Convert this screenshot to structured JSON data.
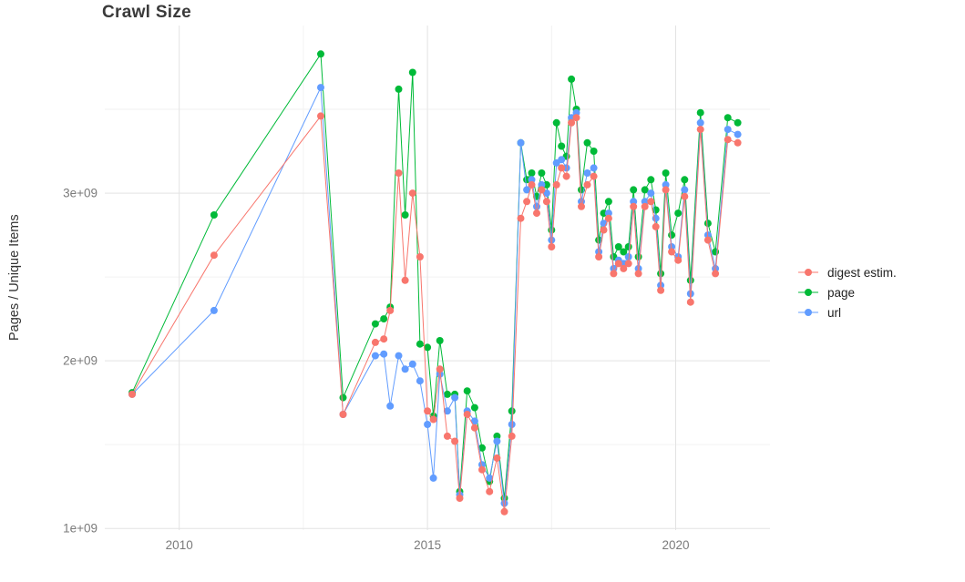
{
  "chart_data": {
    "type": "line",
    "markers": true,
    "title": "Crawl Size",
    "xlabel": "",
    "ylabel": "Pages / Unique Items",
    "y_value_unit": "1e9 (billions)",
    "background": "#ffffff",
    "grid": true,
    "legend_position": "right-center",
    "x_domain": [
      2008.5,
      2021.9
    ],
    "y_domain": [
      0.99,
      4.0
    ],
    "x_ticks": [
      {
        "value": 2010,
        "label": "2010"
      },
      {
        "value": 2015,
        "label": "2015"
      },
      {
        "value": 2020,
        "label": "2020"
      }
    ],
    "y_ticks": [
      {
        "value": 1,
        "label": "1e+09"
      },
      {
        "value": 2,
        "label": "2e+09"
      },
      {
        "value": 3,
        "label": "3e+09"
      }
    ],
    "x_minor_ticks": [
      2012.5,
      2017.5
    ],
    "y_minor_ticks": [
      1.5,
      2.5,
      3.5
    ],
    "colors": {
      "grid_major": "#e3e3e3",
      "grid_minor": "#f2f2f2"
    },
    "series": [
      {
        "name": "digest estim.",
        "key": "digest",
        "color": "#F8766D"
      },
      {
        "name": "page",
        "key": "page",
        "color": "#00BA38"
      },
      {
        "name": "url",
        "key": "url",
        "color": "#619CFF"
      }
    ],
    "points": [
      {
        "x": 2009.05,
        "digest": 1.8,
        "page": 1.81,
        "url": 1.8
      },
      {
        "x": 2010.7,
        "digest": 2.63,
        "page": 2.87,
        "url": 2.3
      },
      {
        "x": 2012.85,
        "digest": 3.46,
        "page": 3.83,
        "url": 3.63
      },
      {
        "x": 2013.3,
        "digest": 1.68,
        "page": 1.78,
        "url": 1.68
      },
      {
        "x": 2013.95,
        "digest": 2.11,
        "page": 2.22,
        "url": 2.03
      },
      {
        "x": 2014.12,
        "digest": 2.13,
        "page": 2.25,
        "url": 2.04
      },
      {
        "x": 2014.25,
        "digest": 2.3,
        "page": 2.32,
        "url": 1.73
      },
      {
        "x": 2014.42,
        "digest": 3.12,
        "page": 3.62,
        "url": 2.03
      },
      {
        "x": 2014.55,
        "digest": 2.48,
        "page": 2.87,
        "url": 1.95
      },
      {
        "x": 2014.7,
        "digest": 3.0,
        "page": 3.72,
        "url": 1.98
      },
      {
        "x": 2014.85,
        "digest": 2.62,
        "page": 2.1,
        "url": 1.88
      },
      {
        "x": 2015.0,
        "digest": 1.7,
        "page": 2.08,
        "url": 1.62
      },
      {
        "x": 2015.12,
        "digest": 1.65,
        "page": 1.67,
        "url": 1.3
      },
      {
        "x": 2015.25,
        "digest": 1.95,
        "page": 2.12,
        "url": 1.92
      },
      {
        "x": 2015.4,
        "digest": 1.55,
        "page": 1.8,
        "url": 1.7
      },
      {
        "x": 2015.55,
        "digest": 1.52,
        "page": 1.8,
        "url": 1.78
      },
      {
        "x": 2015.65,
        "digest": 1.18,
        "page": 1.22,
        "url": 1.2
      },
      {
        "x": 2015.8,
        "digest": 1.68,
        "page": 1.82,
        "url": 1.7
      },
      {
        "x": 2015.95,
        "digest": 1.6,
        "page": 1.72,
        "url": 1.64
      },
      {
        "x": 2016.1,
        "digest": 1.35,
        "page": 1.48,
        "url": 1.38
      },
      {
        "x": 2016.25,
        "digest": 1.22,
        "page": 1.28,
        "url": 1.3
      },
      {
        "x": 2016.4,
        "digest": 1.42,
        "page": 1.55,
        "url": 1.52
      },
      {
        "x": 2016.55,
        "digest": 1.1,
        "page": 1.18,
        "url": 1.15
      },
      {
        "x": 2016.7,
        "digest": 1.55,
        "page": 1.7,
        "url": 1.62
      },
      {
        "x": 2016.88,
        "digest": 2.85,
        "page": 3.3,
        "url": 3.3
      },
      {
        "x": 2017.0,
        "digest": 2.95,
        "page": 3.08,
        "url": 3.02
      },
      {
        "x": 2017.1,
        "digest": 3.05,
        "page": 3.12,
        "url": 3.08
      },
      {
        "x": 2017.2,
        "digest": 2.88,
        "page": 2.98,
        "url": 2.92
      },
      {
        "x": 2017.3,
        "digest": 3.02,
        "page": 3.12,
        "url": 3.05
      },
      {
        "x": 2017.4,
        "digest": 2.95,
        "page": 3.05,
        "url": 3.0
      },
      {
        "x": 2017.5,
        "digest": 2.68,
        "page": 2.78,
        "url": 2.72
      },
      {
        "x": 2017.6,
        "digest": 3.05,
        "page": 3.42,
        "url": 3.18
      },
      {
        "x": 2017.7,
        "digest": 3.15,
        "page": 3.28,
        "url": 3.2
      },
      {
        "x": 2017.8,
        "digest": 3.1,
        "page": 3.22,
        "url": 3.15
      },
      {
        "x": 2017.9,
        "digest": 3.42,
        "page": 3.68,
        "url": 3.45
      },
      {
        "x": 2018.0,
        "digest": 3.45,
        "page": 3.5,
        "url": 3.48
      },
      {
        "x": 2018.1,
        "digest": 2.92,
        "page": 3.02,
        "url": 2.95
      },
      {
        "x": 2018.22,
        "digest": 3.05,
        "page": 3.3,
        "url": 3.12
      },
      {
        "x": 2018.35,
        "digest": 3.1,
        "page": 3.25,
        "url": 3.15
      },
      {
        "x": 2018.45,
        "digest": 2.62,
        "page": 2.72,
        "url": 2.65
      },
      {
        "x": 2018.55,
        "digest": 2.78,
        "page": 2.88,
        "url": 2.82
      },
      {
        "x": 2018.65,
        "digest": 2.85,
        "page": 2.95,
        "url": 2.88
      },
      {
        "x": 2018.75,
        "digest": 2.52,
        "page": 2.62,
        "url": 2.55
      },
      {
        "x": 2018.85,
        "digest": 2.58,
        "page": 2.68,
        "url": 2.6
      },
      {
        "x": 2018.95,
        "digest": 2.55,
        "page": 2.65,
        "url": 2.58
      },
      {
        "x": 2019.05,
        "digest": 2.58,
        "page": 2.68,
        "url": 2.62
      },
      {
        "x": 2019.15,
        "digest": 2.92,
        "page": 3.02,
        "url": 2.95
      },
      {
        "x": 2019.25,
        "digest": 2.52,
        "page": 2.62,
        "url": 2.55
      },
      {
        "x": 2019.38,
        "digest": 2.92,
        "page": 3.02,
        "url": 2.95
      },
      {
        "x": 2019.5,
        "digest": 2.95,
        "page": 3.08,
        "url": 3.0
      },
      {
        "x": 2019.6,
        "digest": 2.8,
        "page": 2.9,
        "url": 2.85
      },
      {
        "x": 2019.7,
        "digest": 2.42,
        "page": 2.52,
        "url": 2.45
      },
      {
        "x": 2019.8,
        "digest": 3.02,
        "page": 3.12,
        "url": 3.05
      },
      {
        "x": 2019.92,
        "digest": 2.65,
        "page": 2.75,
        "url": 2.68
      },
      {
        "x": 2020.05,
        "digest": 2.6,
        "page": 2.88,
        "url": 2.62
      },
      {
        "x": 2020.18,
        "digest": 2.98,
        "page": 3.08,
        "url": 3.02
      },
      {
        "x": 2020.3,
        "digest": 2.35,
        "page": 2.48,
        "url": 2.4
      },
      {
        "x": 2020.5,
        "digest": 3.38,
        "page": 3.48,
        "url": 3.42
      },
      {
        "x": 2020.65,
        "digest": 2.72,
        "page": 2.82,
        "url": 2.75
      },
      {
        "x": 2020.8,
        "digest": 2.52,
        "page": 2.65,
        "url": 2.55
      },
      {
        "x": 2021.05,
        "digest": 3.32,
        "page": 3.45,
        "url": 3.38
      },
      {
        "x": 2021.25,
        "digest": 3.3,
        "page": 3.42,
        "url": 3.35
      }
    ]
  }
}
